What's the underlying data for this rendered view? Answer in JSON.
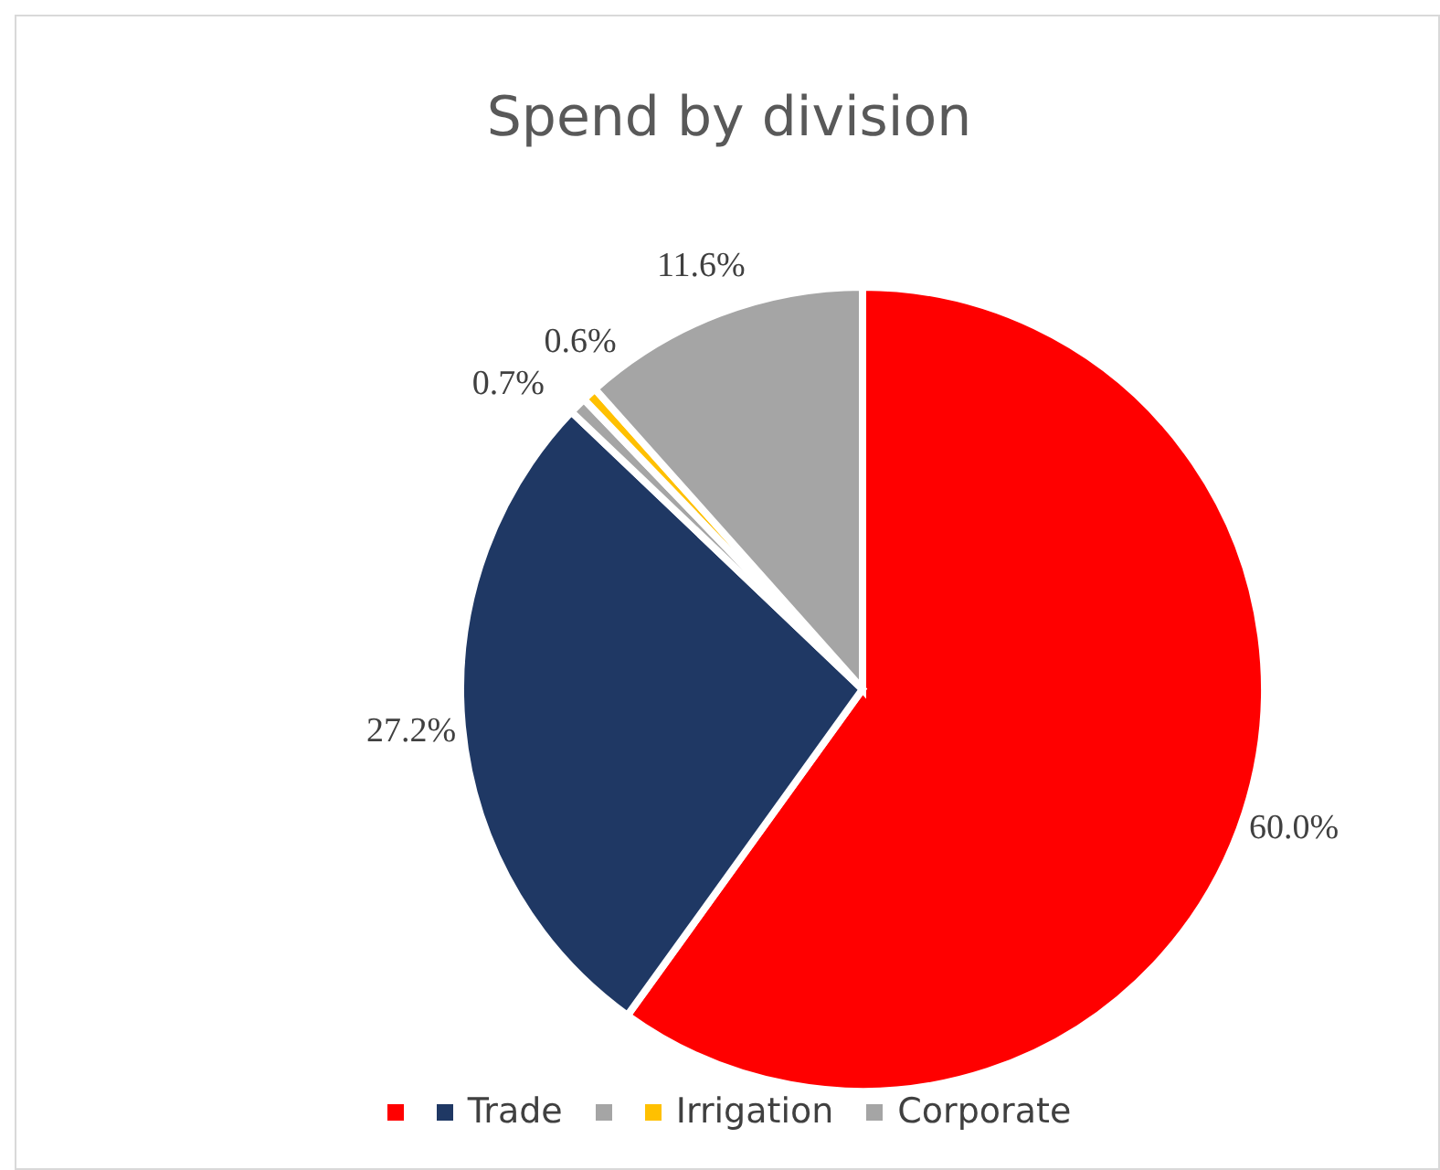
{
  "chart_data": {
    "type": "pie",
    "title": "Spend by division",
    "categories": [
      null,
      "Trade",
      null,
      "Irrigation",
      "Corporate"
    ],
    "values": [
      60.0,
      27.2,
      0.7,
      0.6,
      11.6
    ],
    "colors": [
      "#ff0000",
      "#1f3864",
      "#a5a5a5",
      "#ffc000",
      "#a5a5a5"
    ],
    "value_labels": [
      "60.0%",
      "27.2%",
      "0.7%",
      "0.6%",
      "11.6%"
    ],
    "legend": "bottom"
  }
}
